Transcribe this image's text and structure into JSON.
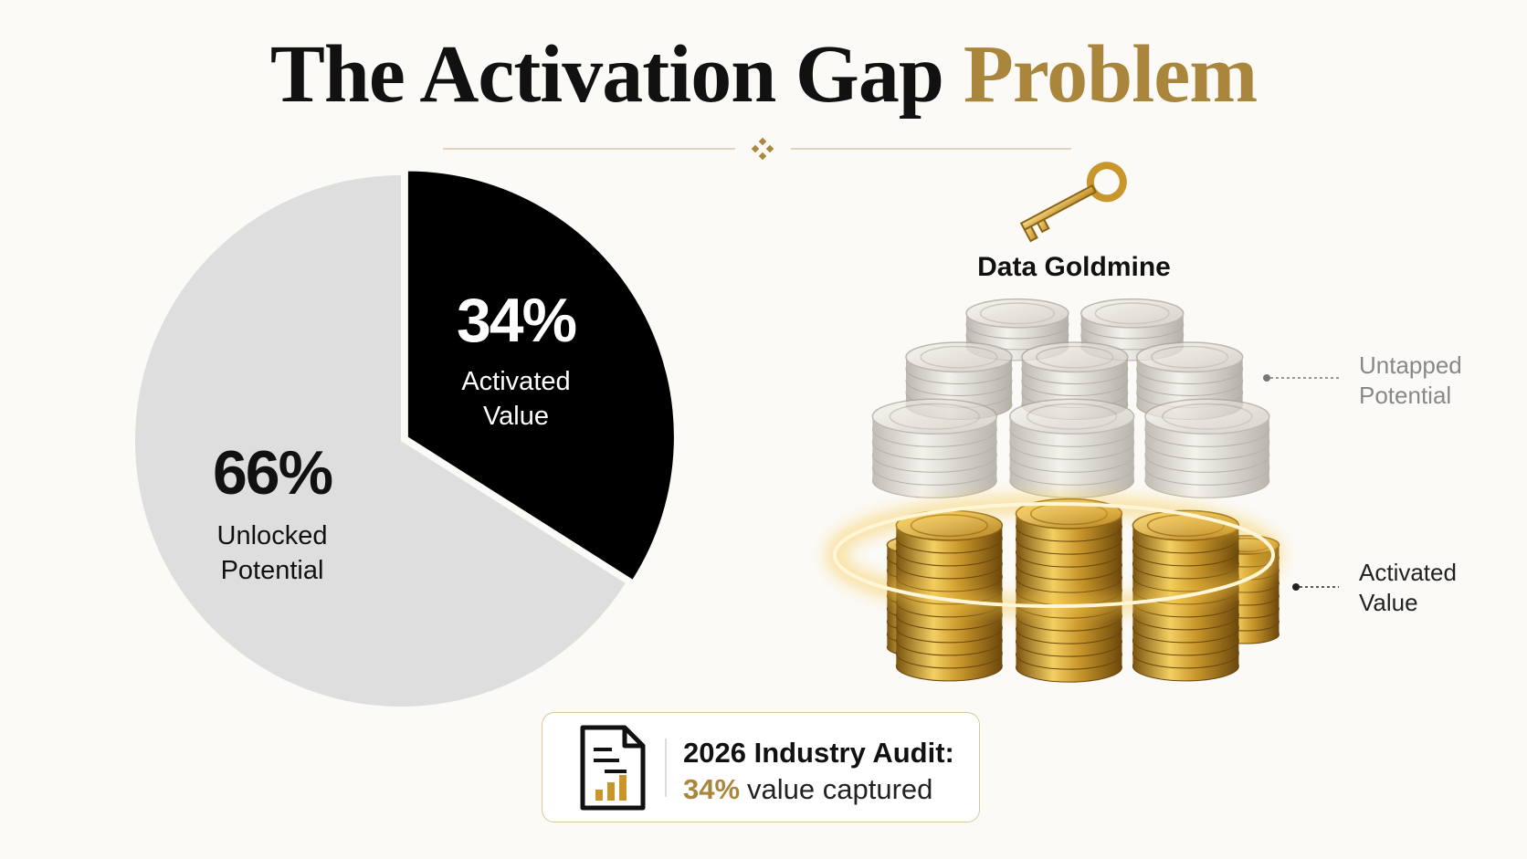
{
  "chart_data": {
    "type": "pie",
    "title": "The Activation Gap",
    "title_highlight": "Problem",
    "categories": [
      "Activated Value",
      "Unlocked Potential"
    ],
    "values": [
      34,
      66
    ],
    "value_labels": [
      "34%",
      "66%"
    ],
    "colors": [
      "#000000",
      "#dedede"
    ],
    "label_colors": [
      "#ffffff",
      "#111111"
    ]
  },
  "illustration": {
    "heading": "Data Goldmine",
    "labels": [
      "Untapped Potential",
      "Activated Value"
    ]
  },
  "callout": {
    "heading": "2026 Industry Audit:",
    "highlight": "34%",
    "text": "value captured"
  }
}
